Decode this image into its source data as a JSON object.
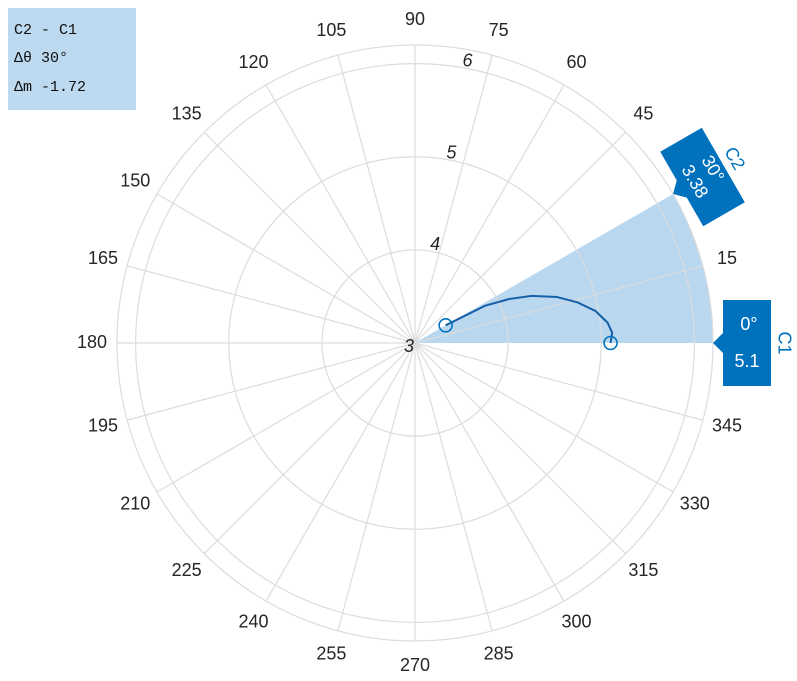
{
  "chart_data": {
    "type": "polar",
    "theta": [
      30,
      28,
      25,
      22,
      18,
      14,
      10,
      6,
      3,
      0
    ],
    "r": [
      3.38,
      3.85,
      4.12,
      4.35,
      4.6,
      4.8,
      4.97,
      5.08,
      5.12,
      5.1
    ],
    "color": "#1560a8",
    "rlim": [
      3,
      6.2
    ],
    "rticks": [
      3,
      4,
      5,
      6
    ],
    "thetaticks": [
      15,
      45,
      60,
      75,
      90,
      105,
      120,
      135,
      150,
      165,
      180,
      195,
      210,
      225,
      240,
      255,
      270,
      285,
      300,
      315,
      330,
      345
    ],
    "grid": true,
    "cursor_color": "#0072bd",
    "sector_color": "#b3d3ee",
    "cursors": [
      {
        "name": "C1",
        "theta": 0,
        "theta_label": "0°",
        "r": 5.1
      },
      {
        "name": "C2",
        "theta": 30,
        "theta_label": "30°",
        "r": 3.38
      }
    ],
    "measurement": [
      "C2 - C1",
      "Δθ 30°",
      "Δm -1.72"
    ]
  }
}
